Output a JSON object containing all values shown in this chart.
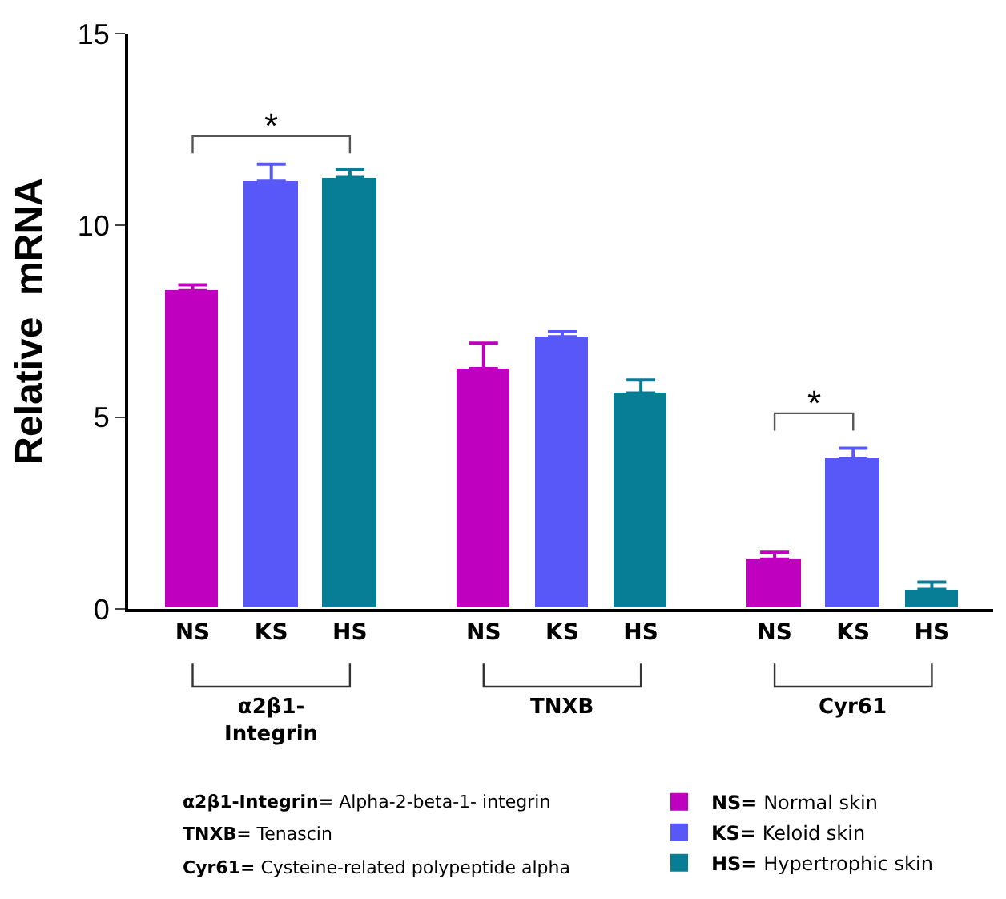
{
  "chart_data": {
    "type": "bar",
    "ylabel": "Relative  mRNA",
    "categories": [
      "α2β1-Integrin",
      "TNXB",
      "Cyr61"
    ],
    "series": [
      {
        "name": "NS= Normal skin",
        "color": "#bf00bf",
        "values": [
          8.3,
          6.27,
          1.3
        ],
        "errors": [
          [
            8.3,
            8.45
          ],
          [
            6.27,
            6.93
          ],
          [
            1.3,
            1.48
          ]
        ]
      },
      {
        "name": "KS= Keloid skin",
        "color": "#5858f8",
        "values": [
          11.15,
          7.1,
          3.93
        ],
        "errors": [
          [
            11.15,
            11.6
          ],
          [
            7.1,
            7.23
          ],
          [
            3.93,
            4.19
          ]
        ]
      },
      {
        "name": "HS= Hypertrophic skin",
        "color": "#087e96",
        "values": [
          11.25,
          5.63,
          0.51
        ],
        "errors": [
          [
            11.25,
            11.45
          ],
          [
            5.63,
            5.97
          ],
          [
            0.51,
            0.7
          ]
        ]
      }
    ],
    "ylim": [
      0,
      15
    ],
    "yticks": [
      0,
      5,
      10,
      15
    ],
    "grid": false,
    "legend": "bottom right",
    "annotations": [
      "*",
      "*",
      "NS",
      "KS",
      "HS",
      "α2β1-Integrin= Alpha-2-beta-1- integrin",
      "TNXB= Tenascin",
      "Cyr61= Cysteine-related polypeptide alpha"
    ]
  }
}
